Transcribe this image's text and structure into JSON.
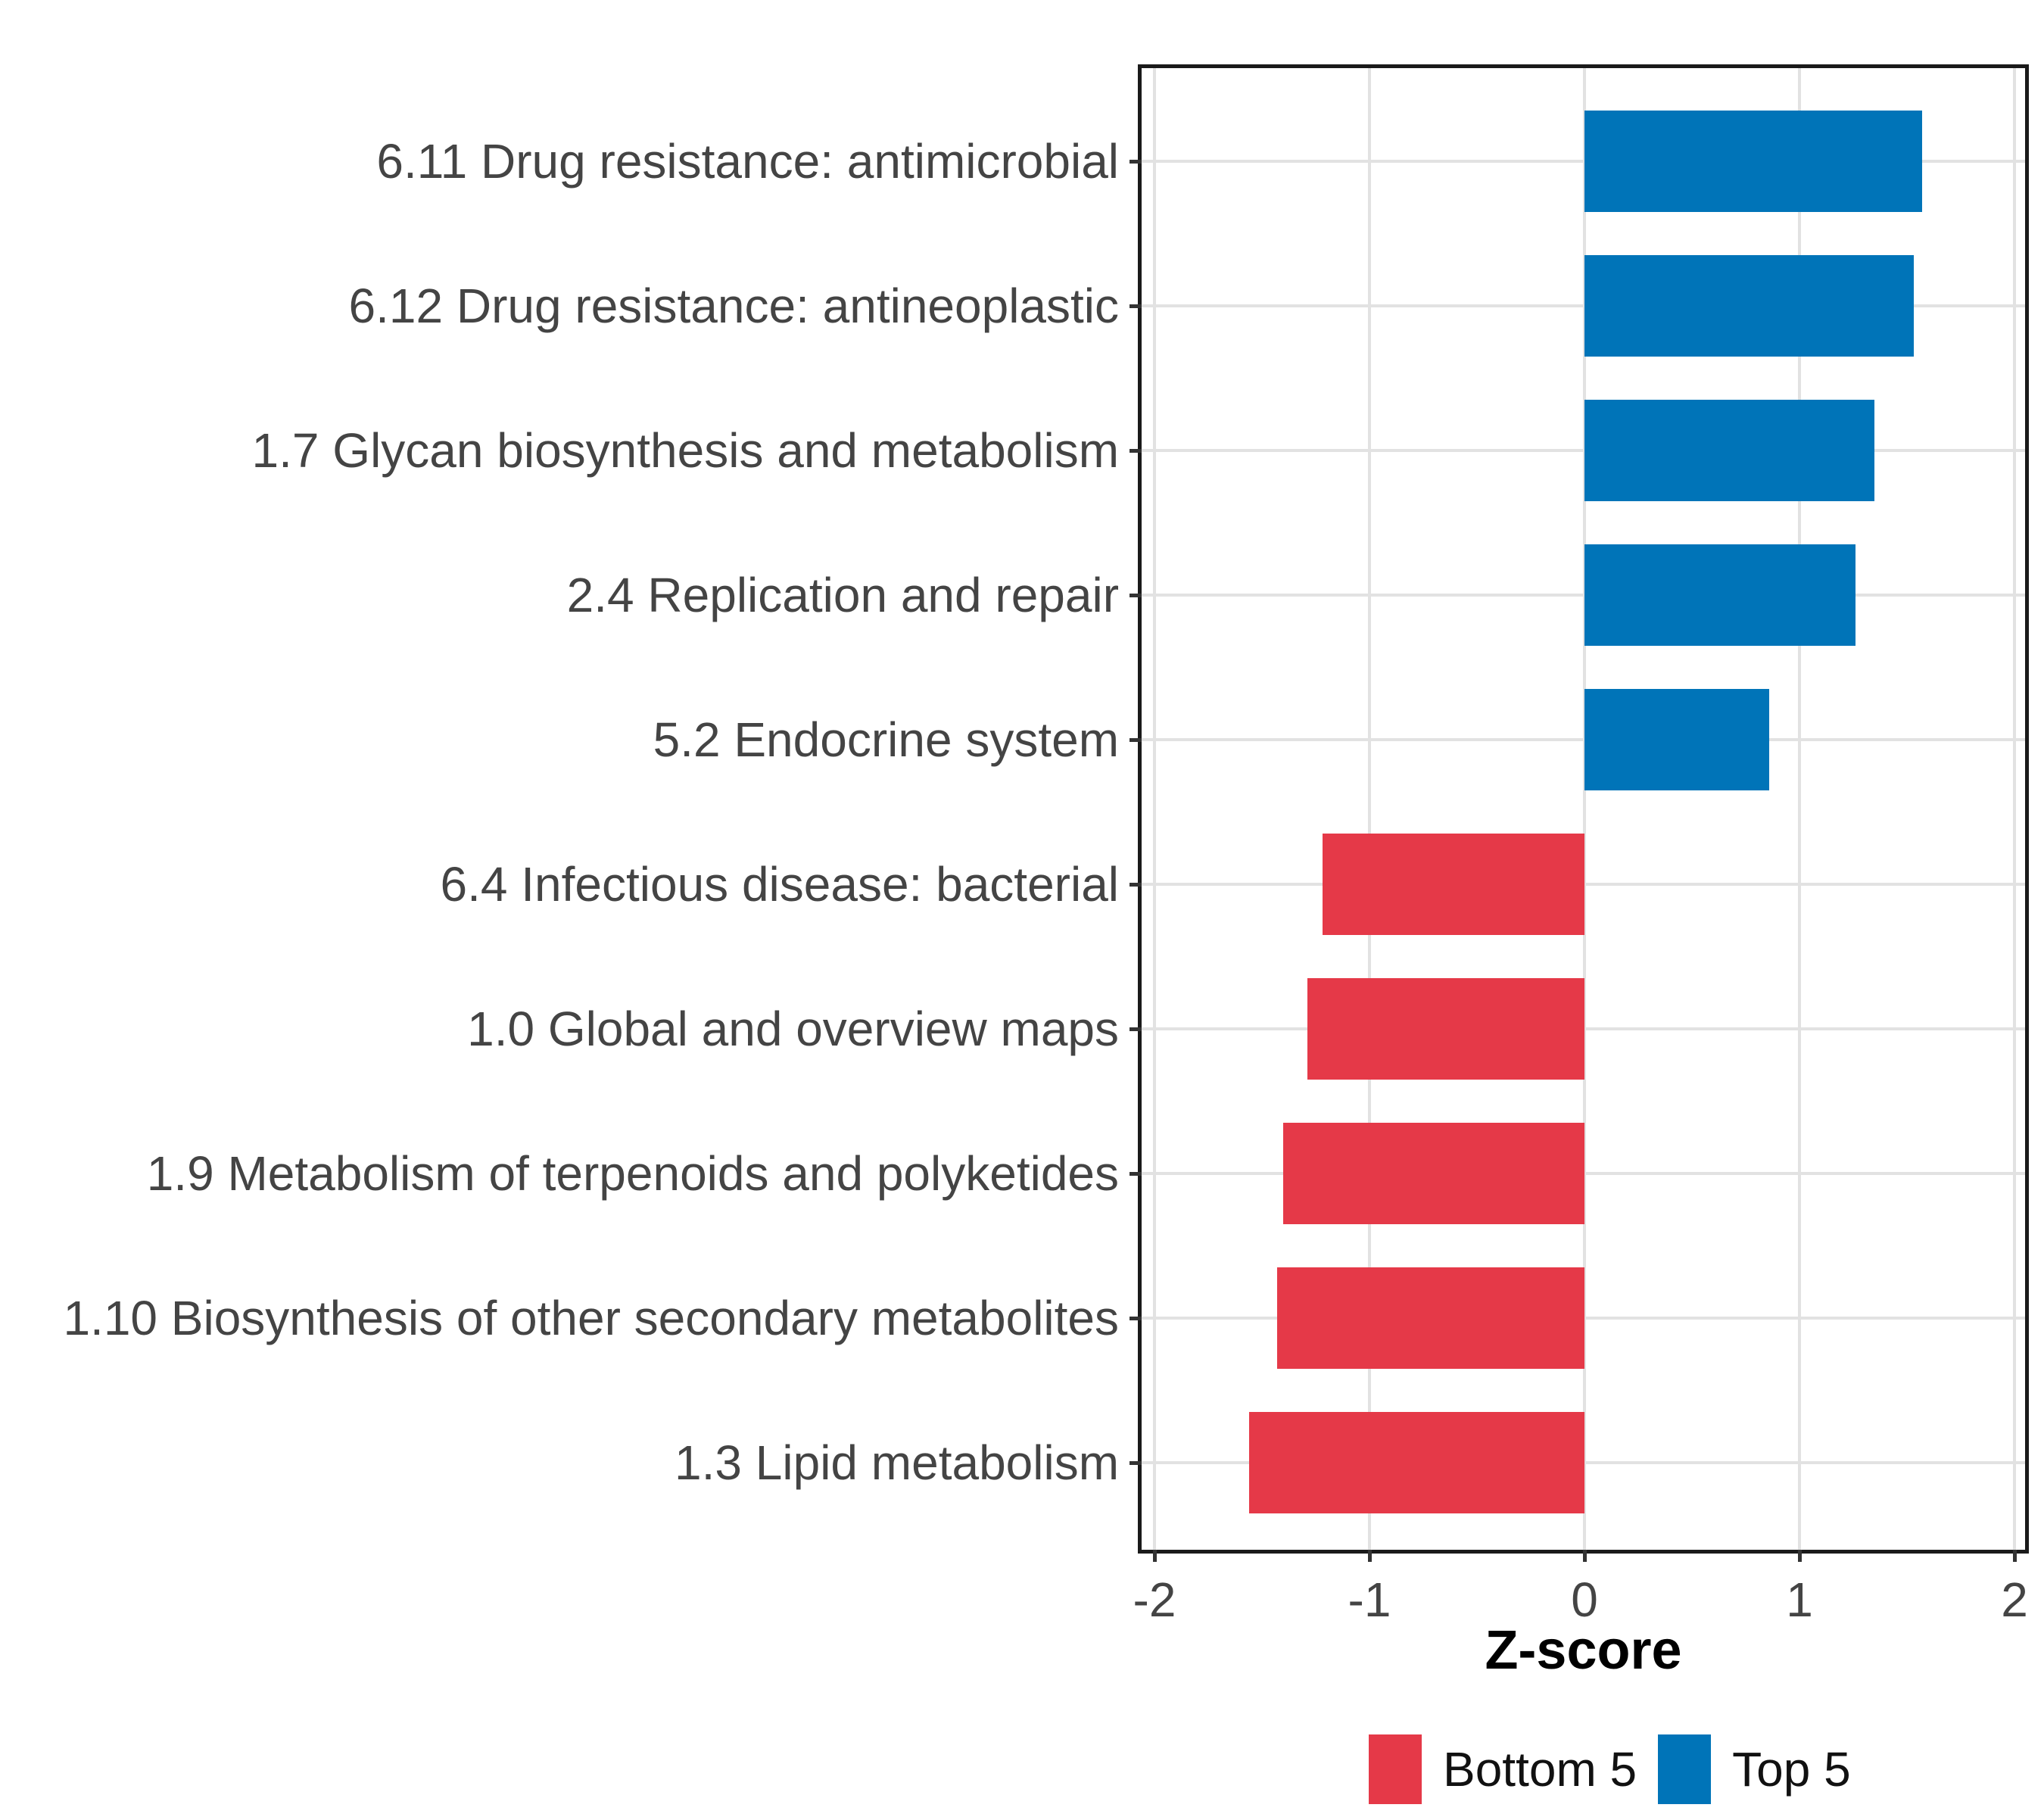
{
  "chart_data": {
    "type": "bar",
    "orientation": "horizontal",
    "title": "",
    "xlabel": "Z-score",
    "ylabel": "",
    "xlim": [
      -2.06,
      2.05
    ],
    "x_ticks": [
      -2,
      -1,
      0,
      1,
      2
    ],
    "grid": true,
    "legend_position": "bottom",
    "categories": [
      "6.11 Drug resistance: antimicrobial",
      "6.12 Drug resistance: antineoplastic",
      "1.7 Glycan biosynthesis and metabolism",
      "2.4 Replication and repair",
      "5.2 Endocrine system",
      "6.4 Infectious disease: bacterial",
      "1.0 Global and overview maps",
      "1.9 Metabolism of terpenoids and polyketides",
      "1.10 Biosynthesis of other secondary metabolites",
      "1.3 Lipid metabolism"
    ],
    "values": [
      1.57,
      1.53,
      1.35,
      1.26,
      0.86,
      -1.22,
      -1.29,
      -1.4,
      -1.43,
      -1.56
    ],
    "groups": [
      "Top 5",
      "Top 5",
      "Top 5",
      "Top 5",
      "Top 5",
      "Bottom 5",
      "Bottom 5",
      "Bottom 5",
      "Bottom 5",
      "Bottom 5"
    ],
    "colors": {
      "Top 5": "#0074B8",
      "Bottom 5": "#E53948"
    },
    "legend": [
      {
        "label": "Bottom 5",
        "color": "#E53948"
      },
      {
        "label": "Top 5",
        "color": "#0074B8"
      }
    ]
  }
}
